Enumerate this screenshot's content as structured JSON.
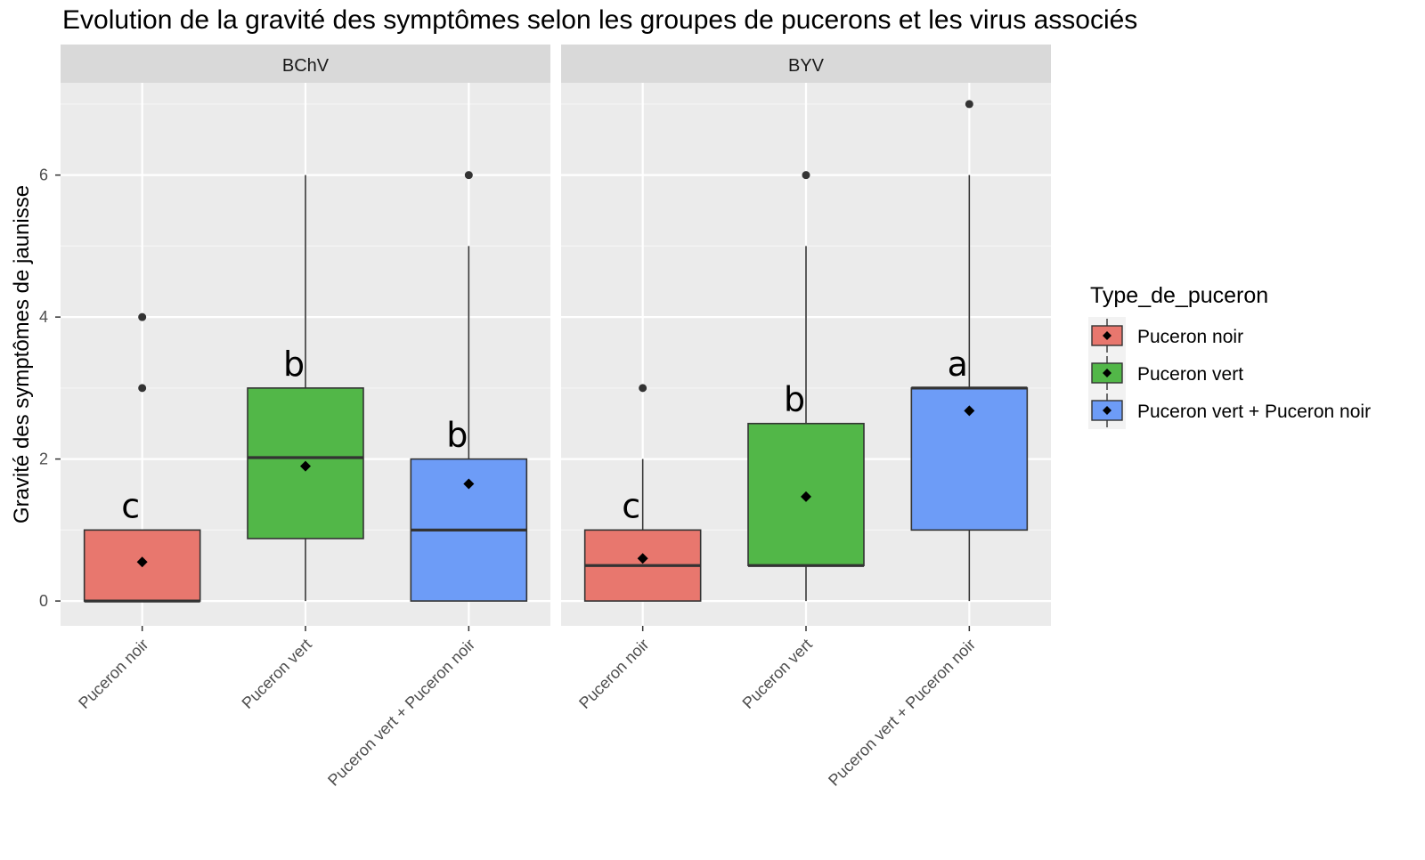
{
  "chart_data": {
    "type": "boxplot",
    "title": "Evolution de la gravité des symptômes selon les groupes de pucerons et les virus associés",
    "ylabel": "Gravité des symptômes de jaunisse",
    "xlabel": "",
    "ylim": [
      -0.35,
      7.3
    ],
    "yticks": [
      0,
      2,
      4,
      6
    ],
    "grid": true,
    "legend": {
      "title": "Type_de_puceron",
      "position": "right",
      "entries": [
        {
          "label": "Puceron noir",
          "color": "#E8776E"
        },
        {
          "label": "Puceron vert",
          "color": "#52B748"
        },
        {
          "label": "Puceron vert + Puceron noir",
          "color": "#6D9CF7"
        }
      ]
    },
    "categories": [
      "Puceron noir",
      "Puceron vert",
      "Puceron vert + Puceron noir"
    ],
    "panels": [
      {
        "name": "BChV",
        "boxes": [
          {
            "q1": 0,
            "median": 0,
            "q3": 1,
            "whisker_low": 0,
            "whisker_high": 1,
            "mean": 0.55,
            "outliers": [
              3,
              4
            ],
            "letter": "c"
          },
          {
            "q1": 0.88,
            "median": 2.02,
            "q3": 3,
            "whisker_low": 0,
            "whisker_high": 6,
            "mean": 1.9,
            "outliers": [],
            "letter": "b"
          },
          {
            "q1": 0,
            "median": 1,
            "q3": 2,
            "whisker_low": 0,
            "whisker_high": 5,
            "mean": 1.65,
            "outliers": [
              6
            ],
            "letter": "b"
          }
        ]
      },
      {
        "name": "BYV",
        "boxes": [
          {
            "q1": 0,
            "median": 0.5,
            "q3": 1,
            "whisker_low": 0,
            "whisker_high": 2,
            "mean": 0.6,
            "outliers": [
              3
            ],
            "letter": "c"
          },
          {
            "q1": 0.5,
            "median": 0.5,
            "q3": 2.5,
            "whisker_low": 0,
            "whisker_high": 5,
            "mean": 1.47,
            "outliers": [
              6
            ],
            "letter": "b"
          },
          {
            "q1": 1,
            "median": 3,
            "q3": 3,
            "whisker_low": 0,
            "whisker_high": 6,
            "mean": 2.68,
            "outliers": [
              7
            ],
            "letter": "a"
          }
        ]
      }
    ]
  }
}
